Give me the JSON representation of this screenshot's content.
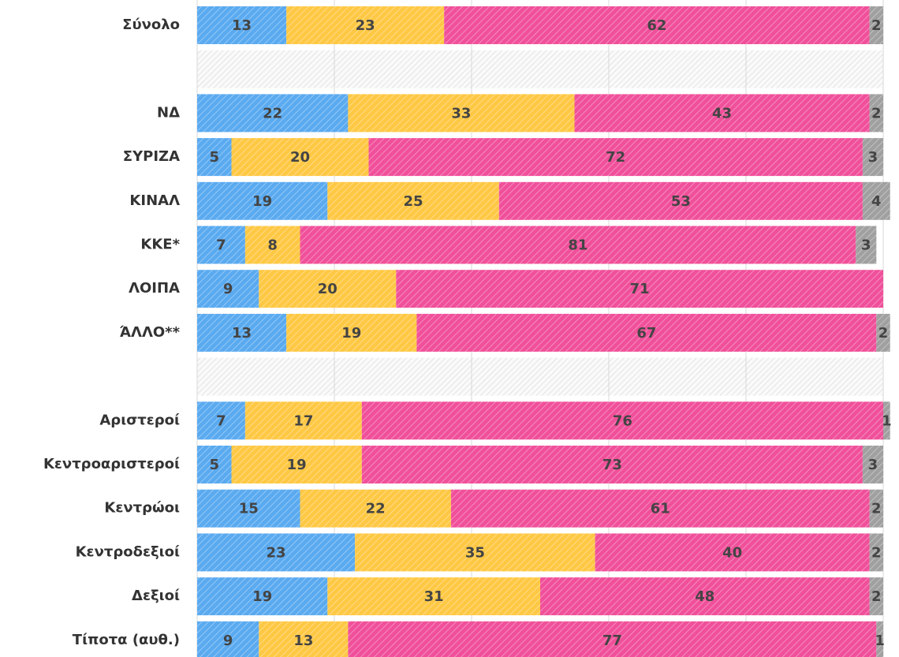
{
  "chart_data": {
    "type": "stacked-barh",
    "categories": [
      "Σύνολο",
      null,
      "ΝΔ",
      "ΣΥΡΙΖΑ",
      "ΚΙΝΑΛ",
      "ΚΚΕ*",
      "ΛΟΙΠΑ",
      "ΆΛΛΟ**",
      null,
      "Αριστεροί",
      "Κεντροαριστεροί",
      "Κεντρώοι",
      "Κεντροδεξιοί",
      "Δεξιοί",
      "Τίποτα (αυθ.)"
    ],
    "series": [
      {
        "color": "#5aaaf0",
        "values": [
          13,
          null,
          22,
          5,
          19,
          7,
          9,
          13,
          null,
          7,
          5,
          15,
          23,
          19,
          9
        ]
      },
      {
        "color": "#ffc844",
        "values": [
          23,
          null,
          33,
          20,
          25,
          8,
          20,
          19,
          null,
          17,
          19,
          22,
          35,
          31,
          13
        ]
      },
      {
        "color": "#f0509a",
        "values": [
          62,
          null,
          43,
          72,
          53,
          81,
          71,
          67,
          null,
          76,
          73,
          61,
          40,
          48,
          77
        ]
      },
      {
        "color": "#a0a0a0",
        "values": [
          2,
          null,
          2,
          3,
          4,
          3,
          null,
          2,
          null,
          1,
          3,
          2,
          2,
          2,
          1
        ]
      }
    ],
    "xlim": [
      0,
      100
    ],
    "xticks": [
      0,
      20,
      40,
      60,
      80,
      100
    ],
    "grid": true
  }
}
